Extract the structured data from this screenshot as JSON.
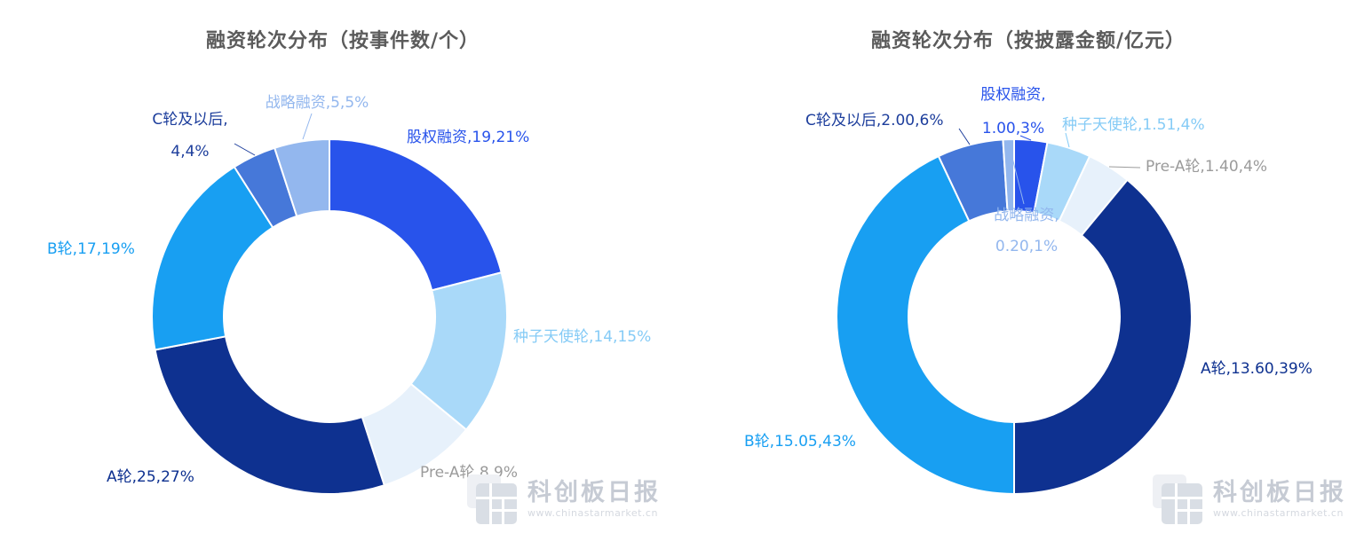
{
  "page": {
    "background": "#ffffff"
  },
  "watermark": {
    "brand": "科创板日报",
    "url": "www.chinastarmarket.cn"
  },
  "chart_data": [
    {
      "type": "pie",
      "title": "融资轮次分布（按事件数/个）",
      "value_unit": "个",
      "donut": true,
      "slices": [
        {
          "name": "股权融资",
          "value": 19,
          "pct": 21,
          "label": "股权融资,19,21%",
          "color": "#2853EB",
          "label_color": "#2853EB"
        },
        {
          "name": "种子天使轮",
          "value": 14,
          "pct": 15,
          "label": "种子天使轮,14,15%",
          "color": "#A9D9F9",
          "label_color": "#85CBF6"
        },
        {
          "name": "Pre-A轮",
          "value": 8,
          "pct": 9,
          "label": "Pre-A轮,8,9%",
          "color": "#E7F1FB",
          "label_color": "#9B9B9B"
        },
        {
          "name": "A轮",
          "value": 25,
          "pct": 27,
          "label": "A轮,25,27%",
          "color": "#0E3190",
          "label_color": "#0E3190"
        },
        {
          "name": "B轮",
          "value": 17,
          "pct": 19,
          "label": "B轮,17,19%",
          "color": "#189FF2",
          "label_color": "#189FF2"
        },
        {
          "name": "C轮及以后",
          "value": 4,
          "pct": 4,
          "label_lines": [
            "C轮及以后,",
            "4,4%"
          ],
          "color": "#4678D9",
          "label_color": "#1D3E9C"
        },
        {
          "name": "战略融资",
          "value": 5,
          "pct": 5,
          "label": "战略融资,5,5%",
          "color": "#93B7EE",
          "label_color": "#93B7EE"
        }
      ]
    },
    {
      "type": "pie",
      "title": "融资轮次分布（按披露金额/亿元）",
      "value_unit": "亿元",
      "donut": true,
      "slices": [
        {
          "name": "股权融资",
          "value": 1.0,
          "pct": 3,
          "label_lines": [
            "股权融资,",
            "1.00,3%"
          ],
          "color": "#2853EB",
          "label_color": "#2853EB"
        },
        {
          "name": "种子天使轮",
          "value": 1.51,
          "pct": 4,
          "label": "种子天使轮,1.51,4%",
          "color": "#A9D9F9",
          "label_color": "#85CBF6"
        },
        {
          "name": "Pre-A轮",
          "value": 1.4,
          "pct": 4,
          "label": "Pre-A轮,1.40,4%",
          "color": "#E7F1FB",
          "label_color": "#9B9B9B"
        },
        {
          "name": "A轮",
          "value": 13.6,
          "pct": 39,
          "label": "A轮,13.60,39%",
          "color": "#0E3190",
          "label_color": "#0E3190"
        },
        {
          "name": "B轮",
          "value": 15.05,
          "pct": 43,
          "label": "B轮,15.05,43%",
          "color": "#189FF2",
          "label_color": "#189FF2"
        },
        {
          "name": "C轮及以后",
          "value": 2.0,
          "pct": 6,
          "label": "C轮及以后,2.00,6%",
          "color": "#4678D9",
          "label_color": "#1D3E9C"
        },
        {
          "name": "战略融资",
          "value": 0.2,
          "pct": 1,
          "label_lines": [
            "战略融资,",
            "0.20,1%"
          ],
          "label_position": "inside",
          "color": "#93B7EE",
          "label_color": "#93B7EE"
        }
      ]
    }
  ]
}
